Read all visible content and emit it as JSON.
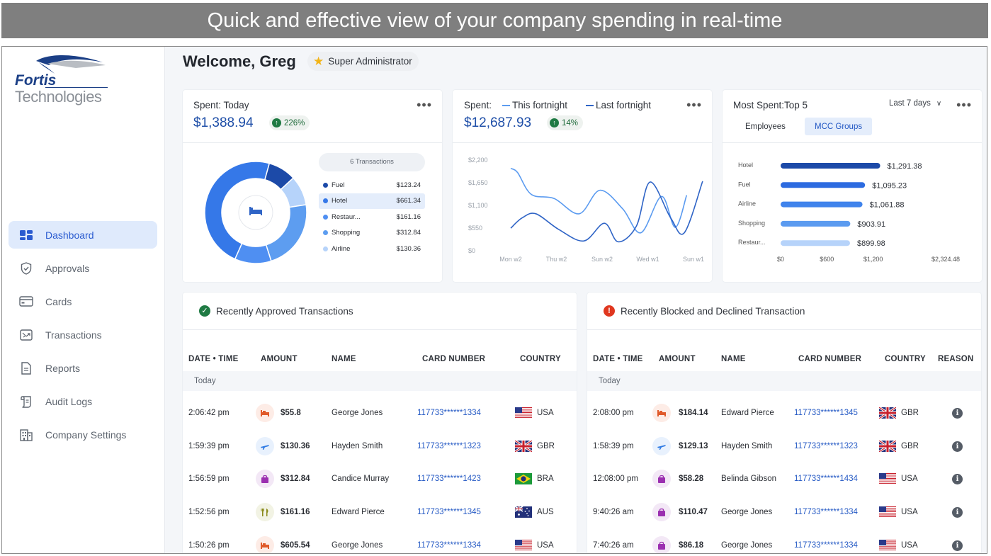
{
  "banner": "Quick and effective view of your company spending in real-time",
  "logo": {
    "line1": "Fortis",
    "line2": "Technologies"
  },
  "sidebar": {
    "items": [
      {
        "label": "Dashboard",
        "icon": "dashboard-icon",
        "active": true
      },
      {
        "label": "Approvals",
        "icon": "shield-check-icon"
      },
      {
        "label": "Cards",
        "icon": "card-icon"
      },
      {
        "label": "Transactions",
        "icon": "transactions-icon"
      },
      {
        "label": "Reports",
        "icon": "report-icon"
      },
      {
        "label": "Audit Logs",
        "icon": "scroll-icon"
      },
      {
        "label": "Company Settings",
        "icon": "building-icon"
      }
    ]
  },
  "header": {
    "welcome": "Welcome, Greg",
    "role": "Super Administrator"
  },
  "today": {
    "title": "Spent: Today",
    "amount": "$1,388.94",
    "change": "226%",
    "transactions_label": "6 Transactions",
    "chart_data": {
      "type": "pie",
      "categories": [
        "Fuel",
        "Hotel",
        "Restaur...",
        "Shopping",
        "Airline"
      ],
      "values": [
        123.24,
        661.34,
        161.16,
        312.84,
        130.36
      ],
      "value_labels": [
        "$123.24",
        "$661.34",
        "$161.16",
        "$312.84",
        "$130.36"
      ],
      "colors": [
        "#1c4aa8",
        "#3578e8",
        "#4f8ff2",
        "#5d9df0",
        "#b6d3fa"
      ],
      "selected": "Hotel"
    }
  },
  "fortnight": {
    "title": "Spent:",
    "legend1": "This fortnight",
    "legend2": "Last fortnight",
    "amount": "$12,687.93",
    "change": "14%",
    "chart_data": {
      "type": "line",
      "x": [
        "Mon w2",
        "Thu w2",
        "Sun w2",
        "Wed w1",
        "Sun w1"
      ],
      "ylim": [
        0,
        2200
      ],
      "yticks": [
        "$2,200",
        "$1,650",
        "$1,100",
        "$550",
        "$0"
      ],
      "series": [
        {
          "name": "This fortnight",
          "color": "#5b9bf0",
          "points": [
            [
              0,
              1980
            ],
            [
              0.15,
              1880
            ],
            [
              0.45,
              1350
            ],
            [
              0.95,
              1250
            ],
            [
              1.5,
              880
            ],
            [
              1.95,
              1450
            ],
            [
              2.45,
              1000
            ],
            [
              2.85,
              420
            ],
            [
              3.3,
              1300
            ],
            [
              3.6,
              550
            ],
            [
              3.85,
              1330
            ]
          ]
        },
        {
          "name": "Last fortnight",
          "color": "#2f64c6",
          "points": [
            [
              0,
              530
            ],
            [
              0.25,
              780
            ],
            [
              0.55,
              880
            ],
            [
              1.05,
              500
            ],
            [
              1.6,
              220
            ],
            [
              2.05,
              650
            ],
            [
              2.35,
              200
            ],
            [
              2.75,
              580
            ],
            [
              3.05,
              1650
            ],
            [
              3.5,
              780
            ],
            [
              3.8,
              420
            ],
            [
              4.2,
              1670
            ]
          ]
        }
      ]
    }
  },
  "top5": {
    "title": "Most Spent:Top 5",
    "range": "Last 7 days",
    "tabs": [
      "Employees",
      "MCC Groups"
    ],
    "active_tab": "MCC Groups",
    "chart_data": {
      "type": "bar",
      "orientation": "horizontal",
      "categories": [
        "Hotel",
        "Fuel",
        "Airline",
        "Shopping",
        "Restaur..."
      ],
      "values": [
        1291.38,
        1095.23,
        1061.88,
        903.91,
        899.98
      ],
      "value_labels": [
        "$1,291.38",
        "$1,095.23",
        "$1,061.88",
        "$903.91",
        "$899.98"
      ],
      "xticks": [
        "$0",
        "$600",
        "$1,200",
        "$2,324.48"
      ],
      "xtick_values": [
        0,
        600,
        1200,
        2324.48
      ],
      "colors": [
        "#1c4aa8",
        "#2d6be0",
        "#3f83ec",
        "#5b9bf0",
        "#b6d3fa"
      ]
    }
  },
  "approved": {
    "title": "Recently Approved Transactions",
    "cols": [
      "DATE • TIME",
      "AMOUNT",
      "NAME",
      "CARD NUMBER",
      "COUNTRY"
    ],
    "group": "Today",
    "rows": [
      {
        "time": "2:06:42 pm",
        "cat": "hotel",
        "amount": "$55.8",
        "name": "George Jones",
        "card": "117733******1334",
        "country": "USA"
      },
      {
        "time": "1:59:39 pm",
        "cat": "airline",
        "amount": "$130.36",
        "name": "Hayden Smith",
        "card": "117733******1323",
        "country": "GBR"
      },
      {
        "time": "1:56:59 pm",
        "cat": "shopping",
        "amount": "$312.84",
        "name": "Candice Murray",
        "card": "117733******1423",
        "country": "BRA"
      },
      {
        "time": "1:52:56 pm",
        "cat": "restaurant",
        "amount": "$161.16",
        "name": "Edward Pierce",
        "card": "117733******1345",
        "country": "AUS"
      },
      {
        "time": "1:50:26 pm",
        "cat": "hotel",
        "amount": "$605.54",
        "name": "George Jones",
        "card": "117733******1334",
        "country": "USA"
      }
    ]
  },
  "blocked": {
    "title": "Recently Blocked and Declined Transaction",
    "cols": [
      "DATE • TIME",
      "AMOUNT",
      "NAME",
      "CARD NUMBER",
      "COUNTRY",
      "REASON"
    ],
    "group": "Today",
    "rows": [
      {
        "time": "2:08:00 pm",
        "cat": "hotel",
        "amount": "$184.14",
        "name": "Edward Pierce",
        "card": "117733******1345",
        "country": "GBR"
      },
      {
        "time": "1:58:39 pm",
        "cat": "airline",
        "amount": "$129.13",
        "name": "Hayden Smith",
        "card": "117733******1323",
        "country": "GBR"
      },
      {
        "time": "12:08:00 pm",
        "cat": "shopping",
        "amount": "$58.28",
        "name": "Belinda Gibson",
        "card": "117733******1434",
        "country": "USA"
      },
      {
        "time": "9:40:26 am",
        "cat": "shopping",
        "amount": "$110.47",
        "name": "George Jones",
        "card": "117733******1334",
        "country": "USA"
      },
      {
        "time": "7:40:26 am",
        "cat": "shopping",
        "amount": "$86.18",
        "name": "George Jones",
        "card": "117733******1334",
        "country": "USA"
      }
    ]
  }
}
